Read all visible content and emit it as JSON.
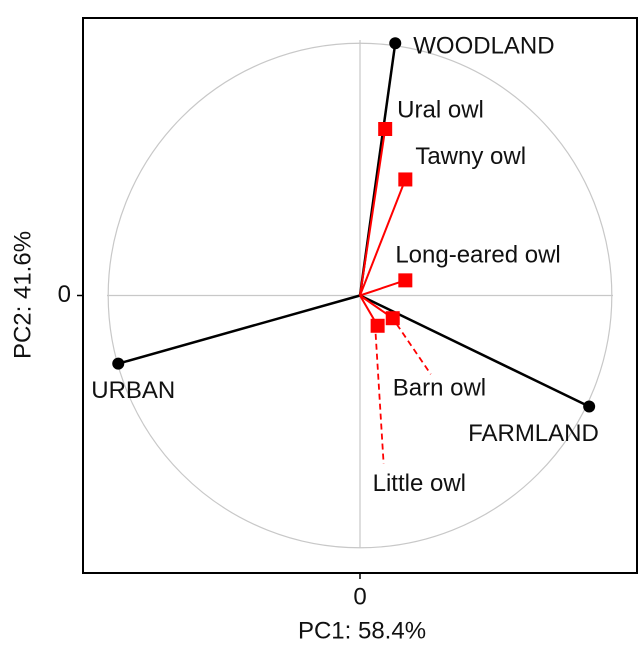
{
  "chart_data": {
    "type": "biplot",
    "xlabel": "PC1: 58.4%",
    "ylabel": "PC2: 41.6%",
    "xlim": [
      -1.1,
      1.1
    ],
    "ylim": [
      -1.1,
      1.1
    ],
    "xticks": [
      0
    ],
    "yticks": [
      0
    ],
    "grid": true,
    "variables": {
      "color": "#000000",
      "points": [
        {
          "label": "WOODLAND",
          "x": 0.14,
          "y": 1.0
        },
        {
          "label": "URBAN",
          "x": -0.96,
          "y": -0.27
        },
        {
          "label": "FARMLAND",
          "x": 0.91,
          "y": -0.44
        }
      ]
    },
    "species": {
      "color": "#ff0000",
      "points": [
        {
          "label": "Ural owl",
          "x": 0.1,
          "y": 0.66
        },
        {
          "label": "Tawny owl",
          "x": 0.18,
          "y": 0.46
        },
        {
          "label": "Long-eared owl",
          "x": 0.18,
          "y": 0.06
        },
        {
          "label": "Barn owl",
          "x": 0.13,
          "y": -0.09
        },
        {
          "label": "Little owl",
          "x": 0.07,
          "y": -0.12
        }
      ]
    }
  }
}
